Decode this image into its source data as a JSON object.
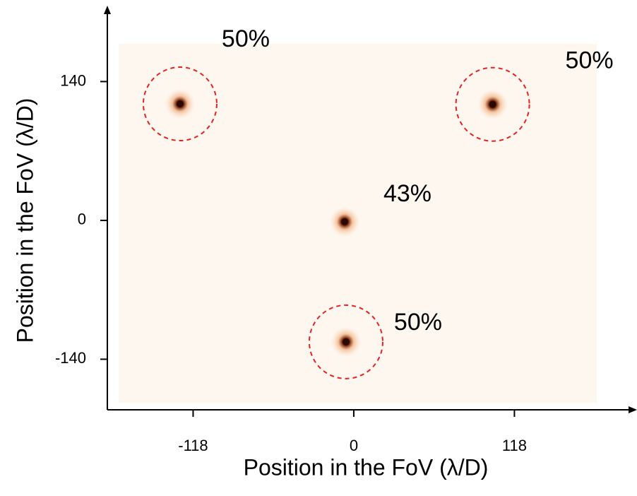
{
  "chart_data": {
    "type": "scatter",
    "x_label": "Position in the FoV (λ/D)",
    "y_label": "Position in the FoV (λ/D)",
    "x": [
      -127.6,
      102,
      -6.7,
      -5.7
    ],
    "y": [
      117.5,
      117,
      -1.4,
      -122.5
    ],
    "values": [
      50,
      50,
      43,
      50
    ],
    "value_labels": [
      "50%",
      "50%",
      "43%",
      "50%"
    ],
    "circled": [
      true,
      true,
      false,
      true
    ],
    "color": "#2a0a00",
    "circle_color": "#e52222",
    "xlim": [
      -181,
      207
    ],
    "ylim": [
      -191,
      213.7
    ],
    "xticks": [
      -118,
      0,
      118
    ],
    "yticks": [
      140,
      0,
      -140
    ],
    "grid": false
  }
}
